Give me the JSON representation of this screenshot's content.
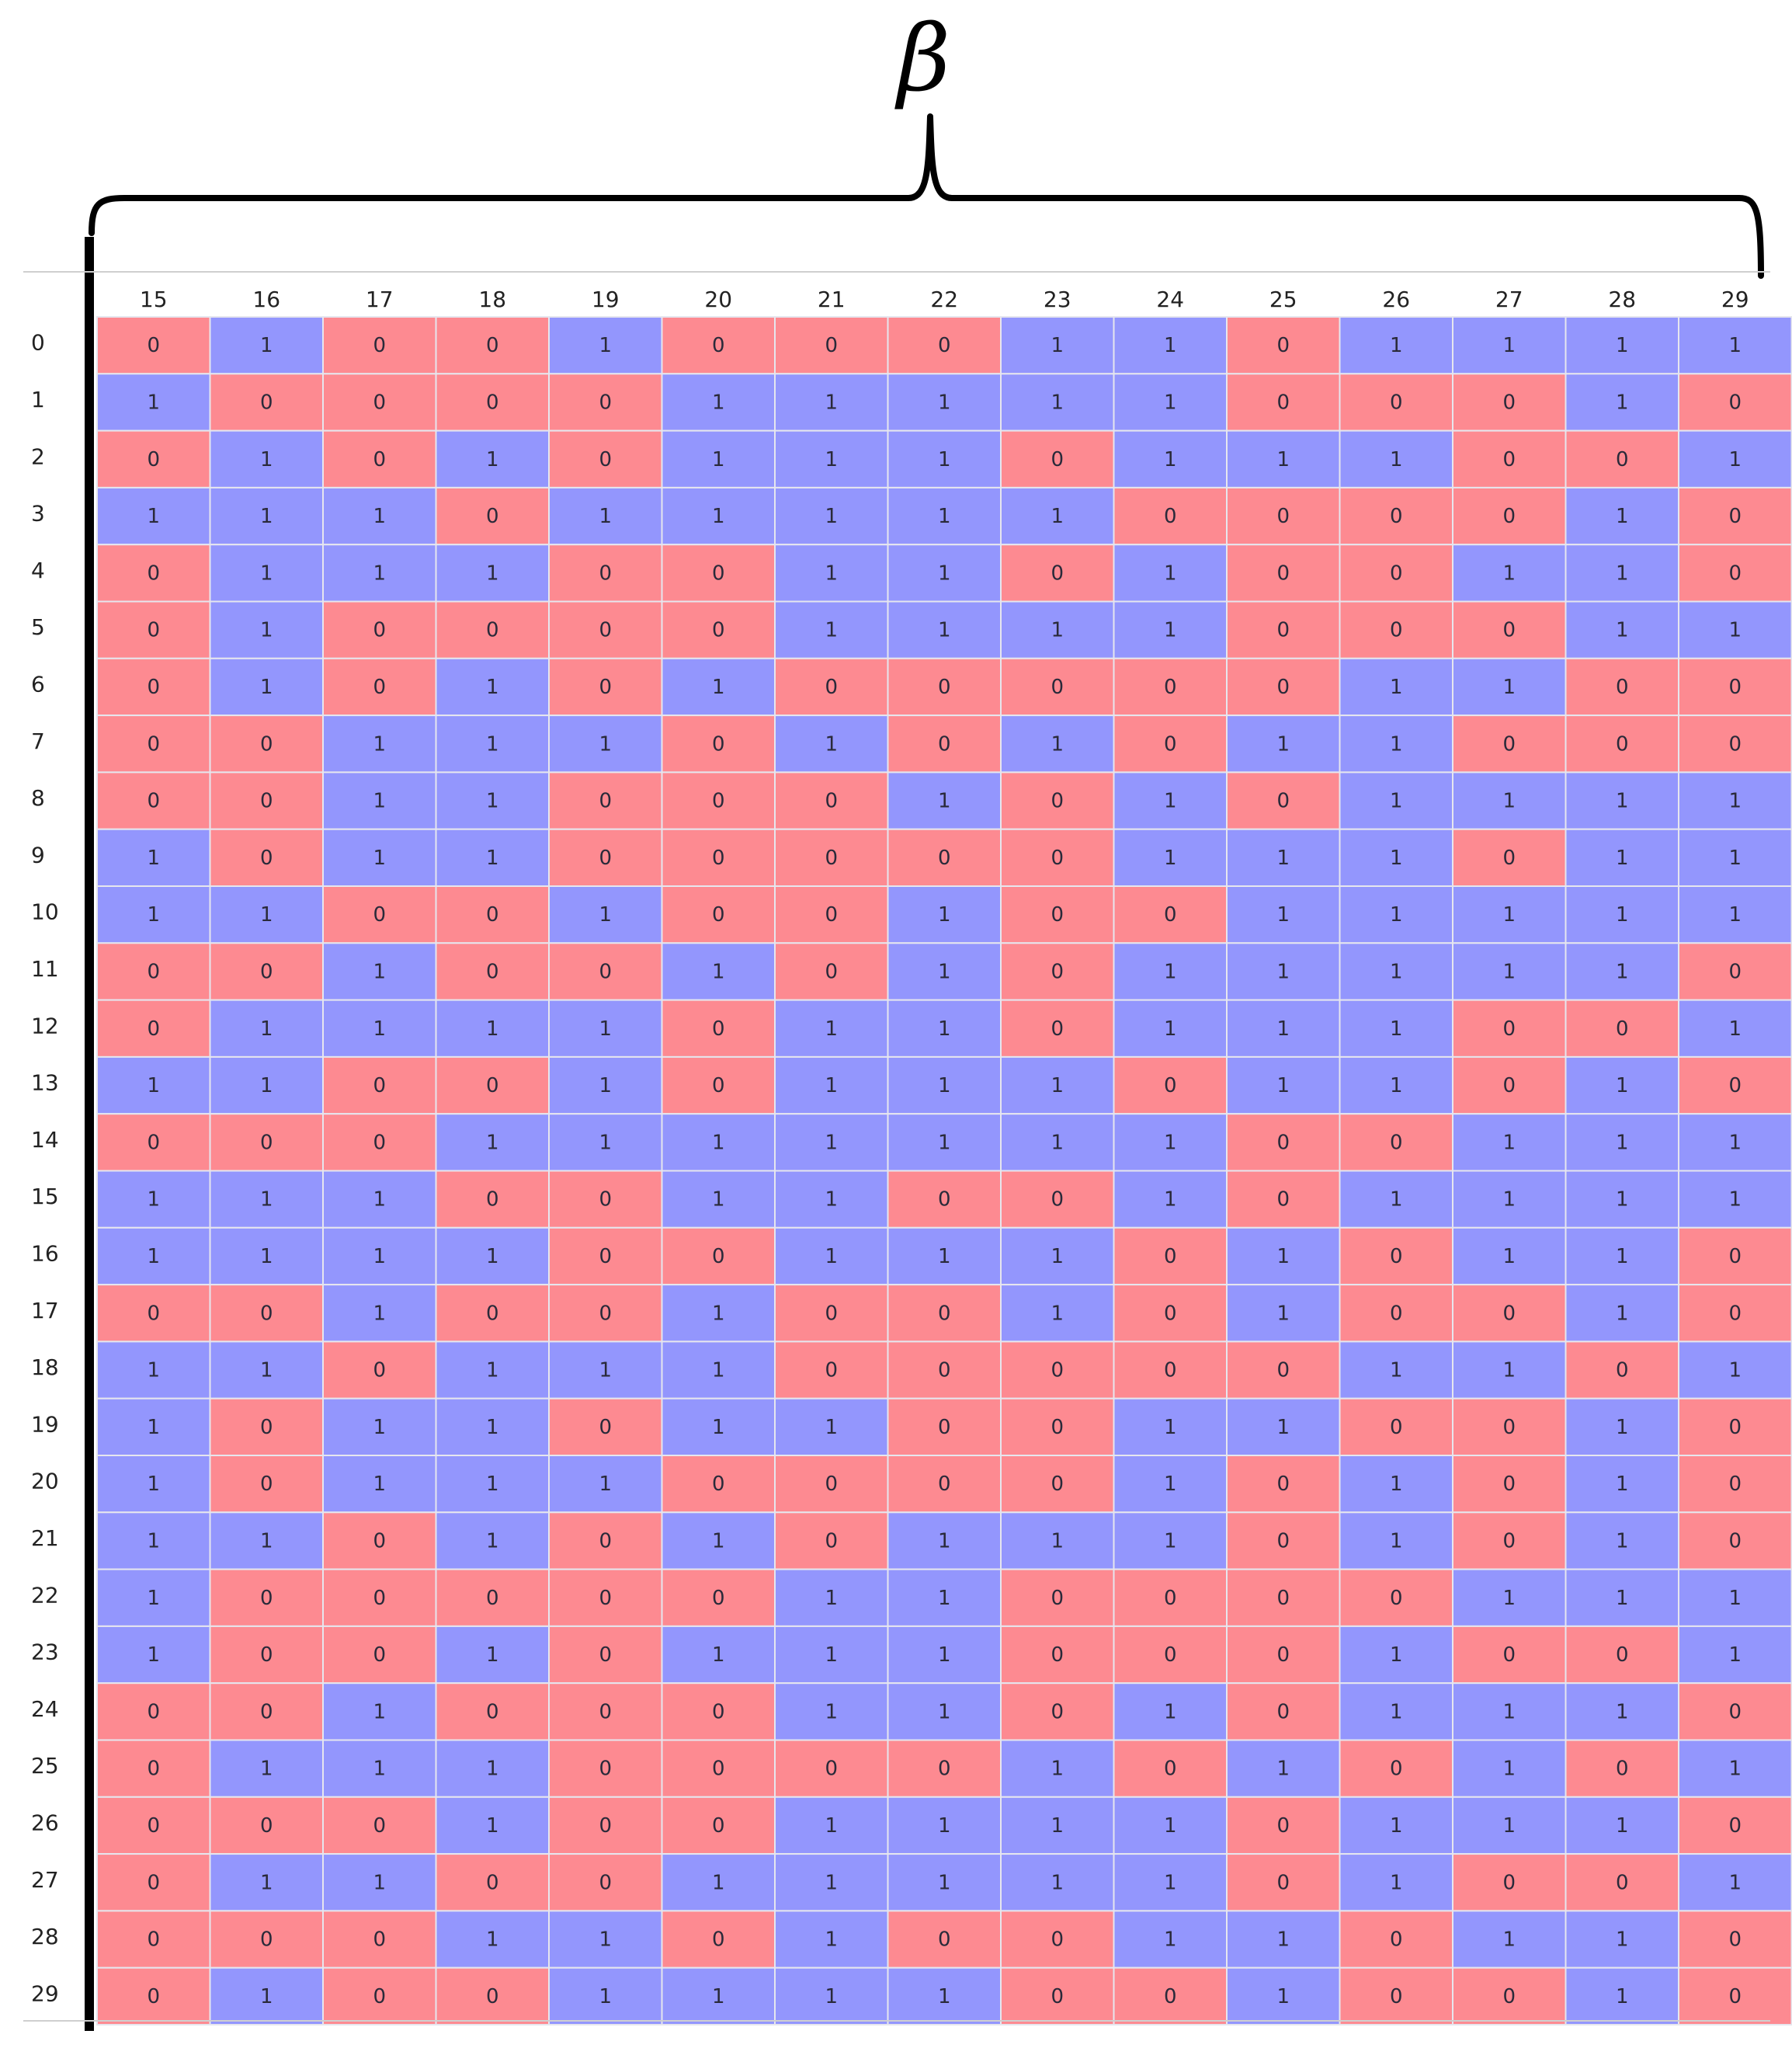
{
  "annotation": {
    "label": "β"
  },
  "colors": {
    "zero": "#fd8a91",
    "one": "#9396fd",
    "grid": "#e6e6ee",
    "text": "#2a2a3a"
  },
  "chart_data": {
    "type": "heatmap",
    "title": "",
    "xlabel": "",
    "ylabel": "",
    "columns": [
      "15",
      "16",
      "17",
      "18",
      "19",
      "20",
      "21",
      "22",
      "23",
      "24",
      "25",
      "26",
      "27",
      "28",
      "29"
    ],
    "rows": [
      "0",
      "1",
      "2",
      "3",
      "4",
      "5",
      "6",
      "7",
      "8",
      "9",
      "10",
      "11",
      "12",
      "13",
      "14",
      "15",
      "16",
      "17",
      "18",
      "19",
      "20",
      "21",
      "22",
      "23",
      "24",
      "25",
      "26",
      "27",
      "28",
      "29"
    ],
    "values": [
      [
        0,
        1,
        0,
        0,
        1,
        0,
        0,
        0,
        1,
        1,
        0,
        1,
        1,
        1,
        1
      ],
      [
        1,
        0,
        0,
        0,
        0,
        1,
        1,
        1,
        1,
        1,
        0,
        0,
        0,
        1,
        0
      ],
      [
        0,
        1,
        0,
        1,
        0,
        1,
        1,
        1,
        0,
        1,
        1,
        1,
        0,
        0,
        1
      ],
      [
        1,
        1,
        1,
        0,
        1,
        1,
        1,
        1,
        1,
        0,
        0,
        0,
        0,
        1,
        0
      ],
      [
        0,
        1,
        1,
        1,
        0,
        0,
        1,
        1,
        0,
        1,
        0,
        0,
        1,
        1,
        0
      ],
      [
        0,
        1,
        0,
        0,
        0,
        0,
        1,
        1,
        1,
        1,
        0,
        0,
        0,
        1,
        1
      ],
      [
        0,
        1,
        0,
        1,
        0,
        1,
        0,
        0,
        0,
        0,
        0,
        1,
        1,
        0,
        0
      ],
      [
        0,
        0,
        1,
        1,
        1,
        0,
        1,
        0,
        1,
        0,
        1,
        1,
        0,
        0,
        0
      ],
      [
        0,
        0,
        1,
        1,
        0,
        0,
        0,
        1,
        0,
        1,
        0,
        1,
        1,
        1,
        1
      ],
      [
        1,
        0,
        1,
        1,
        0,
        0,
        0,
        0,
        0,
        1,
        1,
        1,
        0,
        1,
        1
      ],
      [
        1,
        1,
        0,
        0,
        1,
        0,
        0,
        1,
        0,
        0,
        1,
        1,
        1,
        1,
        1
      ],
      [
        0,
        0,
        1,
        0,
        0,
        1,
        0,
        1,
        0,
        1,
        1,
        1,
        1,
        1,
        0
      ],
      [
        0,
        1,
        1,
        1,
        1,
        0,
        1,
        1,
        0,
        1,
        1,
        1,
        0,
        0,
        1
      ],
      [
        1,
        1,
        0,
        0,
        1,
        0,
        1,
        1,
        1,
        0,
        1,
        1,
        0,
        1,
        0
      ],
      [
        0,
        0,
        0,
        1,
        1,
        1,
        1,
        1,
        1,
        1,
        0,
        0,
        1,
        1,
        1
      ],
      [
        1,
        1,
        1,
        0,
        0,
        1,
        1,
        0,
        0,
        1,
        0,
        1,
        1,
        1,
        1
      ],
      [
        1,
        1,
        1,
        1,
        0,
        0,
        1,
        1,
        1,
        0,
        1,
        0,
        1,
        1,
        0
      ],
      [
        0,
        0,
        1,
        0,
        0,
        1,
        0,
        0,
        1,
        0,
        1,
        0,
        0,
        1,
        0
      ],
      [
        1,
        1,
        0,
        1,
        1,
        1,
        0,
        0,
        0,
        0,
        0,
        1,
        1,
        0,
        1
      ],
      [
        1,
        0,
        1,
        1,
        0,
        1,
        1,
        0,
        0,
        1,
        1,
        0,
        0,
        1,
        0
      ],
      [
        1,
        0,
        1,
        1,
        1,
        0,
        0,
        0,
        0,
        1,
        0,
        1,
        0,
        1,
        0
      ],
      [
        1,
        1,
        0,
        1,
        0,
        1,
        0,
        1,
        1,
        1,
        0,
        1,
        0,
        1,
        0
      ],
      [
        1,
        0,
        0,
        0,
        0,
        0,
        1,
        1,
        0,
        0,
        0,
        0,
        1,
        1,
        1
      ],
      [
        1,
        0,
        0,
        1,
        0,
        1,
        1,
        1,
        0,
        0,
        0,
        1,
        0,
        0,
        1
      ],
      [
        0,
        0,
        1,
        0,
        0,
        0,
        1,
        1,
        0,
        1,
        0,
        1,
        1,
        1,
        0
      ],
      [
        0,
        1,
        1,
        1,
        0,
        0,
        0,
        0,
        1,
        0,
        1,
        0,
        1,
        0,
        1
      ],
      [
        0,
        0,
        0,
        1,
        0,
        0,
        1,
        1,
        1,
        1,
        0,
        1,
        1,
        1,
        0
      ],
      [
        0,
        1,
        1,
        0,
        0,
        1,
        1,
        1,
        1,
        1,
        0,
        1,
        0,
        0,
        1
      ],
      [
        0,
        0,
        0,
        1,
        1,
        0,
        1,
        0,
        0,
        1,
        1,
        0,
        1,
        1,
        0
      ],
      [
        0,
        1,
        0,
        0,
        1,
        1,
        1,
        1,
        0,
        0,
        1,
        0,
        0,
        1,
        0
      ]
    ],
    "value_range": [
      0,
      1
    ]
  }
}
